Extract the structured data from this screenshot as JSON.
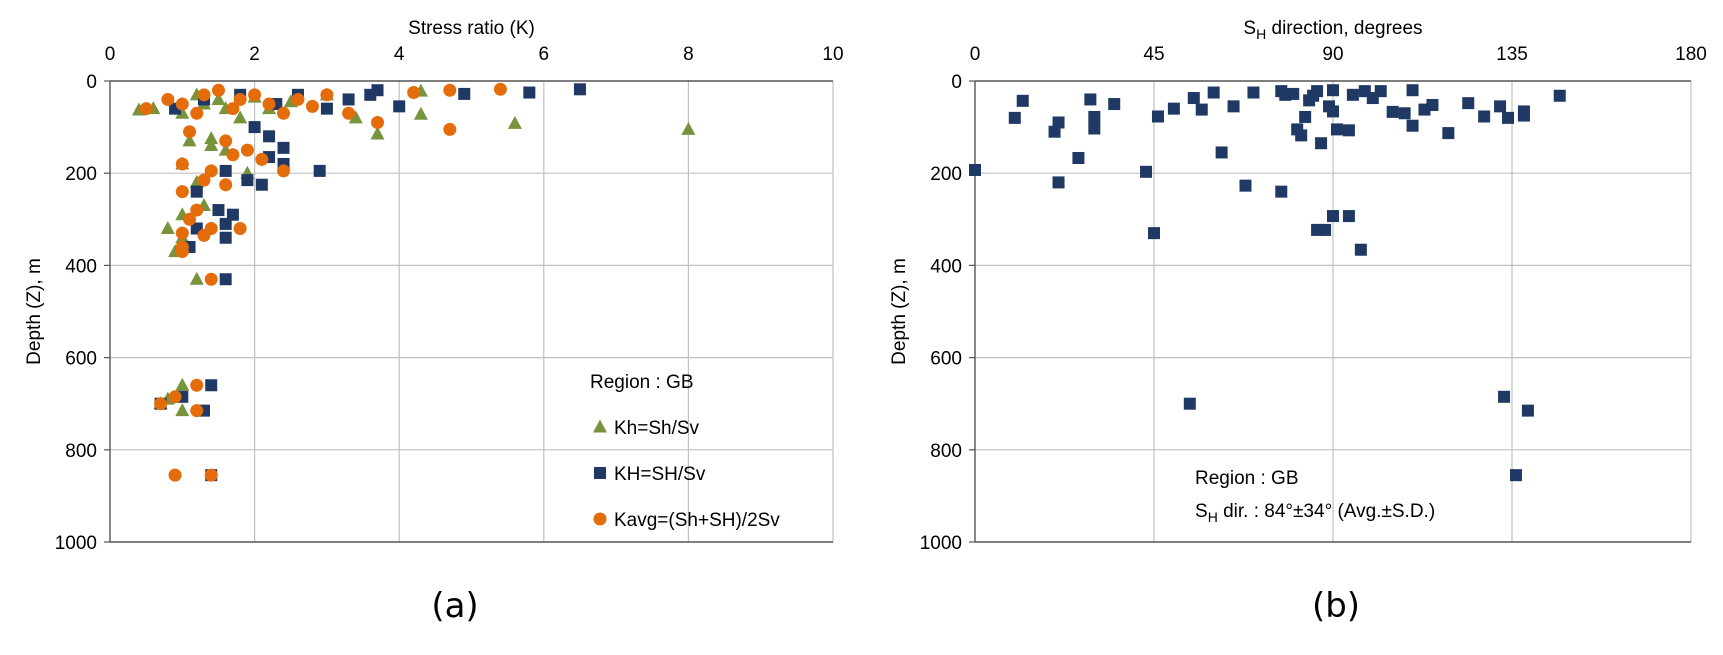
{
  "chart_data": [
    {
      "id": "a",
      "type": "scatter",
      "panel_label": "(a)",
      "xlabel": "Stress ratio (K)",
      "ylabel": "Depth (Z), m",
      "x_axis_position": "top",
      "y_inverted": true,
      "xlim": [
        0,
        10
      ],
      "ylim": [
        0,
        1000
      ],
      "xticks": [
        "0",
        "2",
        "4",
        "6",
        "8",
        "10"
      ],
      "yticks": [
        "0",
        "200",
        "400",
        "600",
        "800",
        "1000"
      ],
      "grid": true,
      "legend_position": "bottom-right",
      "legend_title": "Region : GB",
      "series": [
        {
          "name": "Kh=Sh/Sv",
          "marker": "triangle",
          "color": "#77933c",
          "points": [
            [
              0.4,
              63
            ],
            [
              0.6,
              60
            ],
            [
              1.0,
              70
            ],
            [
              1.2,
              30
            ],
            [
              1.3,
              50
            ],
            [
              1.5,
              40
            ],
            [
              1.6,
              60
            ],
            [
              1.8,
              80
            ],
            [
              2.0,
              35
            ],
            [
              2.2,
              60
            ],
            [
              2.5,
              45
            ],
            [
              3.0,
              30
            ],
            [
              3.4,
              80
            ],
            [
              3.7,
              115
            ],
            [
              4.3,
              72
            ],
            [
              4.3,
              22
            ],
            [
              5.6,
              92
            ],
            [
              8.0,
              105
            ],
            [
              1.1,
              130
            ],
            [
              1.4,
              125
            ],
            [
              1.6,
              150
            ],
            [
              1.0,
              180
            ],
            [
              1.2,
              220
            ],
            [
              1.4,
              140
            ],
            [
              1.9,
              200
            ],
            [
              1.0,
              290
            ],
            [
              1.3,
              270
            ],
            [
              0.8,
              320
            ],
            [
              1.0,
              340
            ],
            [
              0.9,
              370
            ],
            [
              1.2,
              430
            ],
            [
              1.0,
              660
            ],
            [
              0.8,
              690
            ],
            [
              0.7,
              700
            ],
            [
              1.0,
              715
            ]
          ]
        },
        {
          "name": "KH=SH/Sv",
          "marker": "square",
          "color": "#1f3864",
          "points": [
            [
              0.9,
              60
            ],
            [
              1.3,
              40
            ],
            [
              1.8,
              30
            ],
            [
              2.3,
              50
            ],
            [
              2.6,
              30
            ],
            [
              3.0,
              60
            ],
            [
              3.3,
              40
            ],
            [
              3.6,
              30
            ],
            [
              3.7,
              20
            ],
            [
              4.0,
              55
            ],
            [
              4.9,
              28
            ],
            [
              5.8,
              25
            ],
            [
              6.5,
              18
            ],
            [
              2.0,
              100
            ],
            [
              2.2,
              120
            ],
            [
              2.4,
              145
            ],
            [
              2.2,
              165
            ],
            [
              2.9,
              195
            ],
            [
              2.4,
              180
            ],
            [
              1.6,
              195
            ],
            [
              1.9,
              215
            ],
            [
              2.1,
              225
            ],
            [
              1.2,
              240
            ],
            [
              1.5,
              280
            ],
            [
              1.7,
              290
            ],
            [
              1.6,
              310
            ],
            [
              1.2,
              320
            ],
            [
              1.6,
              340
            ],
            [
              1.1,
              360
            ],
            [
              1.6,
              430
            ],
            [
              1.4,
              660
            ],
            [
              1.0,
              685
            ],
            [
              0.7,
              700
            ],
            [
              1.3,
              715
            ],
            [
              1.4,
              855
            ]
          ]
        },
        {
          "name": "Kavg=(Sh+SH)/2Sv",
          "marker": "circle",
          "color": "#e46c0a",
          "points": [
            [
              0.5,
              60
            ],
            [
              0.8,
              40
            ],
            [
              1.0,
              50
            ],
            [
              1.2,
              70
            ],
            [
              1.3,
              30
            ],
            [
              1.5,
              20
            ],
            [
              1.7,
              60
            ],
            [
              1.8,
              40
            ],
            [
              2.0,
              30
            ],
            [
              2.2,
              50
            ],
            [
              2.4,
              70
            ],
            [
              2.6,
              40
            ],
            [
              2.8,
              55
            ],
            [
              3.0,
              30
            ],
            [
              3.3,
              70
            ],
            [
              3.7,
              90
            ],
            [
              4.2,
              25
            ],
            [
              4.7,
              20
            ],
            [
              4.7,
              105
            ],
            [
              5.4,
              18
            ],
            [
              1.1,
              110
            ],
            [
              1.6,
              130
            ],
            [
              1.9,
              150
            ],
            [
              2.1,
              170
            ],
            [
              2.4,
              195
            ],
            [
              1.0,
              180
            ],
            [
              1.4,
              195
            ],
            [
              1.7,
              160
            ],
            [
              1.6,
              225
            ],
            [
              1.3,
              215
            ],
            [
              1.0,
              240
            ],
            [
              1.2,
              280
            ],
            [
              1.1,
              300
            ],
            [
              1.4,
              320
            ],
            [
              1.8,
              320
            ],
            [
              1.0,
              330
            ],
            [
              1.3,
              335
            ],
            [
              1.0,
              360
            ],
            [
              1.0,
              370
            ],
            [
              1.4,
              430
            ],
            [
              1.2,
              660
            ],
            [
              0.9,
              685
            ],
            [
              0.7,
              700
            ],
            [
              1.2,
              715
            ],
            [
              0.9,
              855
            ],
            [
              1.4,
              855
            ]
          ]
        }
      ]
    },
    {
      "id": "b",
      "type": "scatter",
      "panel_label": "(b)",
      "xlabel_main": "S",
      "xlabel_sub": "H",
      "xlabel_rest": " direction, degrees",
      "ylabel": "Depth (Z), m",
      "x_axis_position": "top",
      "y_inverted": true,
      "xlim": [
        0,
        180
      ],
      "ylim": [
        0,
        1000
      ],
      "xticks": [
        "0",
        "45",
        "90",
        "135",
        "180"
      ],
      "yticks": [
        "0",
        "200",
        "400",
        "600",
        "800",
        "1000"
      ],
      "grid": true,
      "annotation_line1": "Region : GB",
      "annotation_line2_main": "S",
      "annotation_line2_sub": "H",
      "annotation_line2_rest": " dir.  : 84°±34° (Avg.±S.D.)",
      "series": [
        {
          "name": "",
          "marker": "square",
          "color": "#1f3864",
          "points": [
            [
              0,
              193
            ],
            [
              10,
              80
            ],
            [
              12,
              43
            ],
            [
              21,
              90
            ],
            [
              20,
              110
            ],
            [
              21,
              220
            ],
            [
              29,
              40
            ],
            [
              30,
              78
            ],
            [
              30,
              103
            ],
            [
              26,
              167
            ],
            [
              35,
              50
            ],
            [
              43,
              197
            ],
            [
              46,
              77
            ],
            [
              45,
              330
            ],
            [
              50,
              60
            ],
            [
              55,
              37
            ],
            [
              57,
              62
            ],
            [
              62,
              155
            ],
            [
              60,
              25
            ],
            [
              65,
              55
            ],
            [
              70,
              25
            ],
            [
              68,
              227
            ],
            [
              77,
              22
            ],
            [
              78,
              30
            ],
            [
              80,
              28
            ],
            [
              81,
              105
            ],
            [
              82,
              118
            ],
            [
              83,
              78
            ],
            [
              84,
              42
            ],
            [
              85,
              32
            ],
            [
              86,
              22
            ],
            [
              87,
              135
            ],
            [
              88,
              323
            ],
            [
              77,
              240
            ],
            [
              89,
              55
            ],
            [
              90,
              20
            ],
            [
              90,
              66
            ],
            [
              91,
              105
            ],
            [
              94,
              107
            ],
            [
              95,
              30
            ],
            [
              98,
              22
            ],
            [
              97,
              366
            ],
            [
              100,
              37
            ],
            [
              102,
              22
            ],
            [
              105,
              67
            ],
            [
              108,
              70
            ],
            [
              110,
              20
            ],
            [
              110,
              97
            ],
            [
              113,
              62
            ],
            [
              115,
              52
            ],
            [
              119,
              113
            ],
            [
              124,
              48
            ],
            [
              128,
              77
            ],
            [
              132,
              55
            ],
            [
              134,
              80
            ],
            [
              138,
              75
            ],
            [
              138,
              66
            ],
            [
              147,
              32
            ],
            [
              54,
              700
            ],
            [
              90,
              293
            ],
            [
              94,
              293
            ],
            [
              86,
              323
            ],
            [
              133,
              685
            ],
            [
              139,
              715
            ],
            [
              136,
              855
            ]
          ]
        }
      ]
    }
  ]
}
